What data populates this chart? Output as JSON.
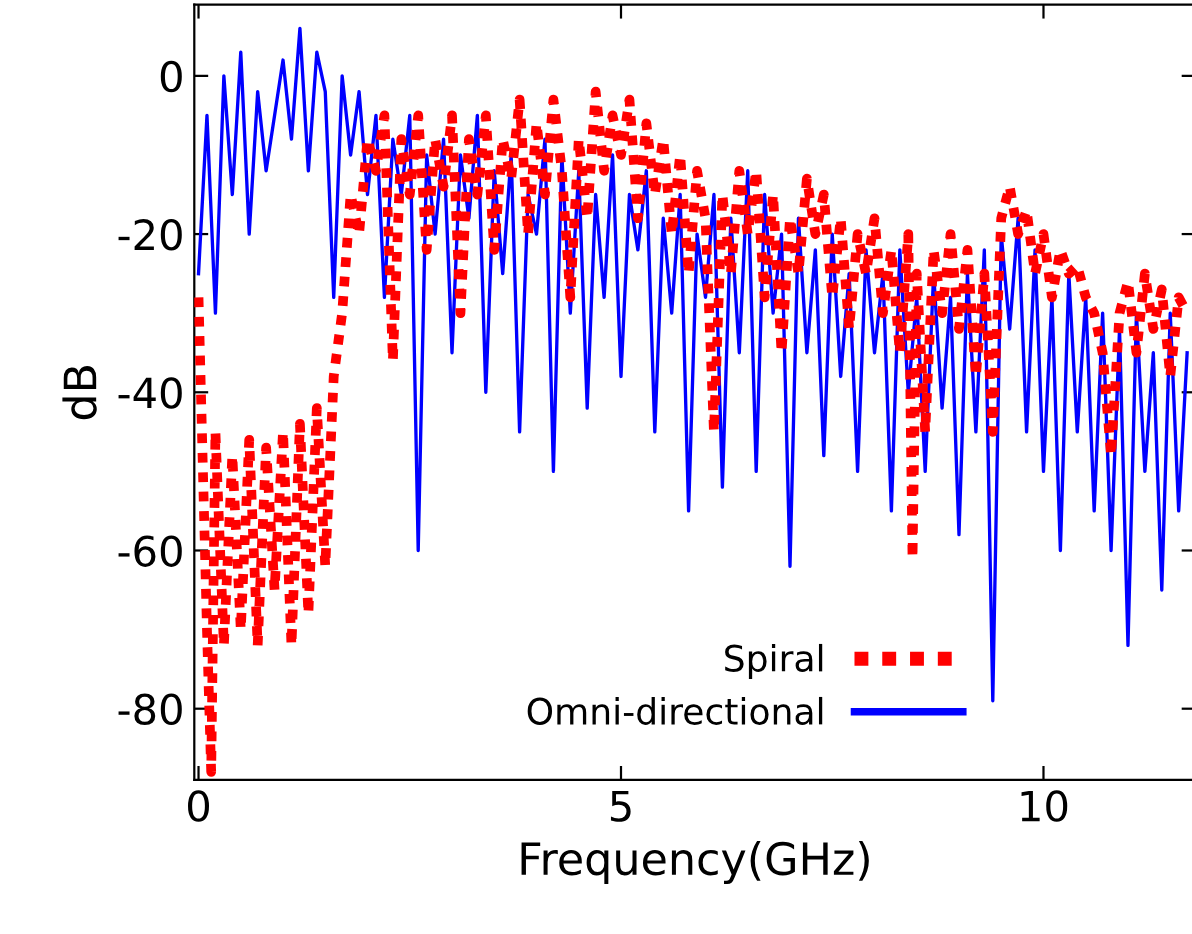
{
  "chart_data": {
    "type": "line",
    "xlabel": "Frequency(GHz)",
    "ylabel": "dB",
    "xlim": [
      -0.05,
      11.8
    ],
    "ylim": [
      -89,
      9
    ],
    "xticks": [
      0,
      5,
      10
    ],
    "yticks": [
      -80,
      -60,
      -40,
      -20,
      0
    ],
    "grid": false,
    "legend": "bottom right",
    "marker": "none",
    "series": [
      {
        "name": "Spiral",
        "color": "#ff0000",
        "line_style": "dotted",
        "x": [
          0.0,
          0.1,
          0.15,
          0.2,
          0.3,
          0.4,
          0.5,
          0.6,
          0.7,
          0.8,
          0.9,
          1.0,
          1.1,
          1.2,
          1.3,
          1.4,
          1.5,
          1.6,
          1.7,
          1.8,
          1.9,
          2.0,
          2.1,
          2.2,
          2.3,
          2.4,
          2.5,
          2.6,
          2.7,
          2.8,
          2.9,
          3.0,
          3.1,
          3.2,
          3.3,
          3.4,
          3.5,
          3.6,
          3.7,
          3.8,
          3.9,
          4.0,
          4.1,
          4.2,
          4.3,
          4.4,
          4.5,
          4.6,
          4.7,
          4.8,
          4.9,
          5.0,
          5.1,
          5.2,
          5.3,
          5.4,
          5.5,
          5.6,
          5.7,
          5.8,
          5.9,
          6.0,
          6.1,
          6.2,
          6.3,
          6.4,
          6.5,
          6.6,
          6.7,
          6.8,
          6.9,
          7.0,
          7.1,
          7.2,
          7.3,
          7.4,
          7.5,
          7.6,
          7.7,
          7.8,
          7.9,
          8.0,
          8.1,
          8.2,
          8.3,
          8.4,
          8.45,
          8.5,
          8.6,
          8.7,
          8.8,
          8.9,
          9.0,
          9.1,
          9.2,
          9.3,
          9.4,
          9.5,
          9.6,
          9.7,
          9.8,
          9.9,
          10.0,
          10.1,
          10.2,
          10.3,
          10.4,
          10.5,
          10.6,
          10.7,
          10.8,
          10.9,
          11.0,
          11.1,
          11.2,
          11.3,
          11.4,
          11.5,
          11.6,
          11.7
        ],
        "values": [
          -28,
          -70,
          -88,
          -45,
          -72,
          -48,
          -70,
          -46,
          -72,
          -47,
          -65,
          -45,
          -72,
          -44,
          -68,
          -42,
          -62,
          -38,
          -30,
          -15,
          -20,
          -8,
          -12,
          -5,
          -36,
          -8,
          -15,
          -5,
          -22,
          -8,
          -14,
          -5,
          -30,
          -8,
          -15,
          -5,
          -22,
          -8,
          -13,
          -3,
          -20,
          -6,
          -15,
          -3,
          -12,
          -28,
          -8,
          -18,
          -2,
          -12,
          -5,
          -10,
          -3,
          -18,
          -6,
          -15,
          -8,
          -20,
          -10,
          -25,
          -12,
          -18,
          -45,
          -15,
          -25,
          -12,
          -20,
          -12,
          -28,
          -15,
          -35,
          -18,
          -25,
          -13,
          -20,
          -15,
          -28,
          -18,
          -32,
          -20,
          -25,
          -18,
          -30,
          -22,
          -35,
          -20,
          -61,
          -25,
          -45,
          -22,
          -30,
          -20,
          -32,
          -22,
          -38,
          -25,
          -45,
          -18,
          -14,
          -20,
          -17,
          -25,
          -20,
          -28,
          -22,
          -25,
          -24,
          -28,
          -30,
          -35,
          -48,
          -30,
          -26,
          -35,
          -25,
          -32,
          -27,
          -38,
          -28,
          -30
        ]
      },
      {
        "name": "Omni-directional",
        "color": "#0000ff",
        "line_style": "solid",
        "x": [
          0.0,
          0.1,
          0.2,
          0.3,
          0.4,
          0.5,
          0.6,
          0.7,
          0.8,
          0.9,
          1.0,
          1.1,
          1.2,
          1.3,
          1.4,
          1.5,
          1.6,
          1.7,
          1.8,
          1.9,
          2.0,
          2.1,
          2.2,
          2.3,
          2.4,
          2.5,
          2.6,
          2.7,
          2.8,
          2.9,
          3.0,
          3.1,
          3.2,
          3.3,
          3.4,
          3.5,
          3.6,
          3.7,
          3.8,
          3.9,
          4.0,
          4.1,
          4.2,
          4.3,
          4.4,
          4.5,
          4.6,
          4.7,
          4.8,
          4.9,
          5.0,
          5.1,
          5.2,
          5.3,
          5.4,
          5.5,
          5.6,
          5.7,
          5.8,
          5.9,
          6.0,
          6.1,
          6.2,
          6.3,
          6.4,
          6.5,
          6.6,
          6.7,
          6.8,
          6.9,
          7.0,
          7.1,
          7.2,
          7.3,
          7.4,
          7.5,
          7.6,
          7.7,
          7.8,
          7.9,
          8.0,
          8.1,
          8.2,
          8.3,
          8.4,
          8.5,
          8.6,
          8.7,
          8.8,
          8.9,
          9.0,
          9.1,
          9.2,
          9.3,
          9.4,
          9.5,
          9.6,
          9.7,
          9.8,
          9.9,
          10.0,
          10.1,
          10.2,
          10.3,
          10.4,
          10.5,
          10.6,
          10.7,
          10.8,
          10.9,
          11.0,
          11.1,
          11.2,
          11.3,
          11.4,
          11.5,
          11.6,
          11.7
        ],
        "values": [
          -25,
          -5,
          -30,
          0,
          -15,
          3,
          -20,
          -2,
          -12,
          -5,
          2,
          -8,
          6,
          -12,
          3,
          -2,
          -28,
          0,
          -10,
          -2,
          -15,
          -5,
          -28,
          -8,
          -15,
          -5,
          -60,
          -10,
          -20,
          -8,
          -35,
          -10,
          -18,
          -5,
          -40,
          -12,
          -25,
          -10,
          -45,
          -15,
          -20,
          -8,
          -50,
          -10,
          -30,
          -12,
          -42,
          -15,
          -28,
          -10,
          -38,
          -15,
          -22,
          -12,
          -45,
          -18,
          -30,
          -15,
          -55,
          -20,
          -28,
          -15,
          -52,
          -18,
          -35,
          -12,
          -50,
          -15,
          -30,
          -20,
          -62,
          -18,
          -35,
          -22,
          -48,
          -20,
          -38,
          -25,
          -50,
          -22,
          -35,
          -25,
          -55,
          -22,
          -40,
          -28,
          -50,
          -25,
          -42,
          -28,
          -58,
          -25,
          -45,
          -22,
          -79,
          -20,
          -32,
          -18,
          -45,
          -22,
          -50,
          -28,
          -60,
          -25,
          -45,
          -28,
          -55,
          -30,
          -60,
          -32,
          -72,
          -30,
          -50,
          -35,
          -65,
          -30,
          -55,
          -35
        ]
      }
    ]
  }
}
